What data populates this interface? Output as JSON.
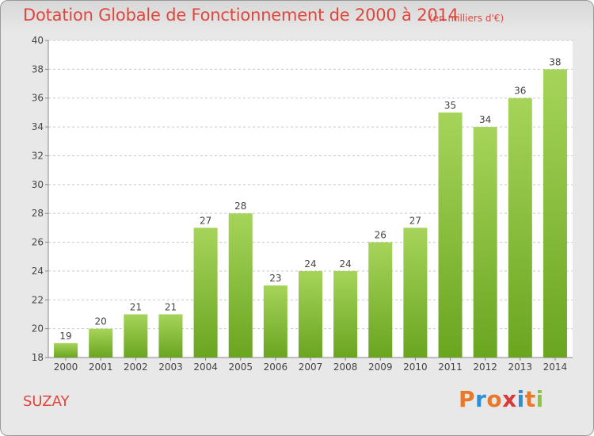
{
  "header": {
    "title": "Dotation Globale de Fonctionnement de 2000 à 2014",
    "unit": "(en milliers d'€)"
  },
  "footer": {
    "town": "SUZAY",
    "brand": "Proxiti"
  },
  "colors": {
    "title": "#e0463c",
    "bar_top": "#a6d45a",
    "bar_bottom": "#6aa520",
    "grid": "#c8c8c8",
    "axis_text": "#444444",
    "brand_letters": [
      "#e8792a",
      "#2e8fd6",
      "#e8792a",
      "#d63a3a",
      "#2e8fd6",
      "#e8792a",
      "#8cc63f"
    ]
  },
  "chart_data": {
    "type": "bar",
    "categories": [
      "2000",
      "2001",
      "2002",
      "2003",
      "2004",
      "2005",
      "2006",
      "2007",
      "2008",
      "2009",
      "2010",
      "2011",
      "2012",
      "2013",
      "2014"
    ],
    "values": [
      19,
      20,
      21,
      21,
      27,
      28,
      23,
      24,
      24,
      26,
      27,
      35,
      34,
      36,
      38
    ],
    "ylim": [
      18,
      40
    ],
    "yticks": [
      18,
      20,
      22,
      24,
      26,
      28,
      30,
      32,
      34,
      36,
      38,
      40
    ],
    "grid": true,
    "data_labels": true
  }
}
